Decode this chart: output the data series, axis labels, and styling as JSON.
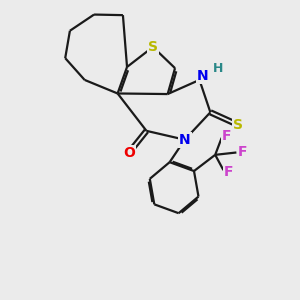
{
  "bg_color": "#ebebeb",
  "line_color": "#1a1a1a",
  "S_color": "#b8b800",
  "N_color": "#0000ee",
  "O_color": "#ee0000",
  "F_color": "#cc44cc",
  "H_color": "#2a8888",
  "S_thione_color": "#b8b800",
  "lw": 1.6,
  "figsize": [
    3.0,
    3.0
  ],
  "dpi": 100,
  "xlim": [
    0,
    10
  ],
  "ylim": [
    0,
    10
  ],
  "label_fs": 10,
  "label_fs_small": 9
}
